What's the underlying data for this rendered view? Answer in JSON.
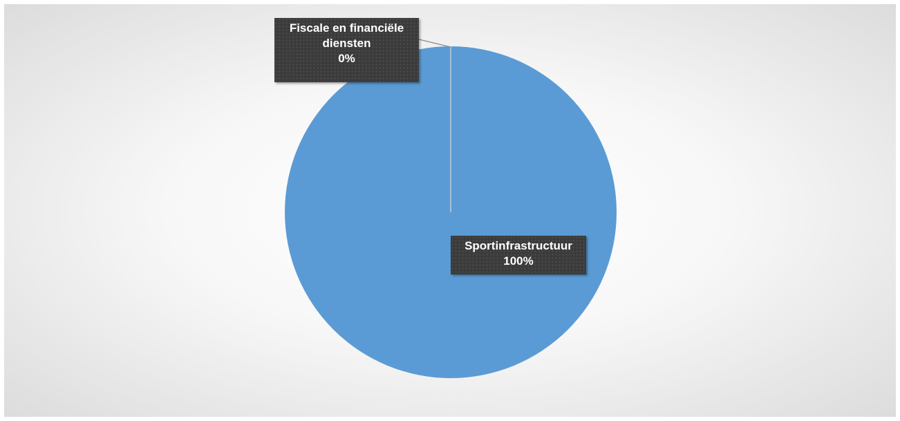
{
  "chart_data": {
    "type": "pie",
    "title": "",
    "categories": [
      "Fiscale en financiële diensten",
      "Sportinfrastructuur"
    ],
    "values": [
      0,
      100
    ],
    "labels": [
      {
        "name_line1": "Fiscale en financiële",
        "name_line2": "diensten",
        "percent": "0%"
      },
      {
        "name_line1": "Sportinfrastructuur",
        "name_line2": "",
        "percent": "100%"
      }
    ],
    "colors": [
      "#ED7D31",
      "#5B9BD5"
    ],
    "legend": "none",
    "data_labels": "outside-end with leader lines"
  }
}
